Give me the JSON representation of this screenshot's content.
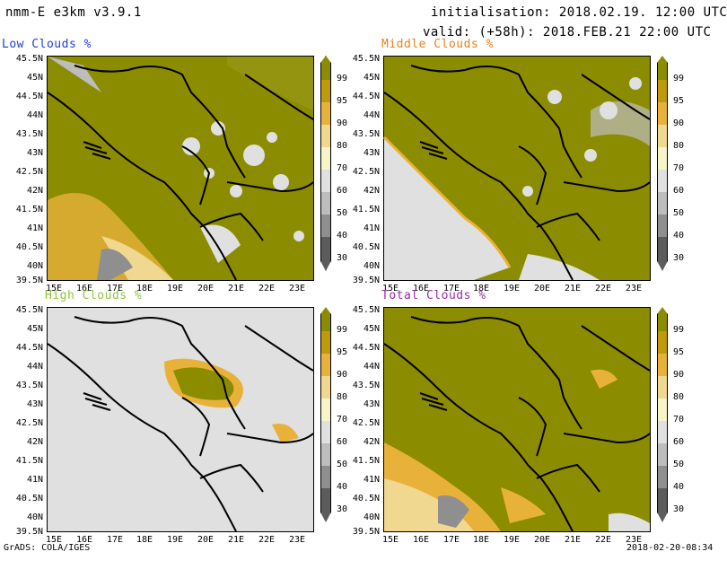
{
  "header": {
    "model": "nmm-E e3km v3.9.1",
    "init": "initialisation: 2018.02.19. 12:00 UTC",
    "valid": "valid: (+58h): 2018.FEB.21 22:00 UTC"
  },
  "panels": [
    {
      "title": "Low Clouds %",
      "title_color": "#1e3fd6"
    },
    {
      "title": "Middle Clouds %",
      "title_color": "#e8821e"
    },
    {
      "title": "High Clouds %",
      "title_color": "#8fc43a"
    },
    {
      "title": "Total Clouds %",
      "title_color": "#9b2aa8"
    }
  ],
  "y_ticks": [
    "45.5N",
    "45N",
    "44.5N",
    "44N",
    "43.5N",
    "43N",
    "42.5N",
    "42N",
    "41.5N",
    "41N",
    "40.5N",
    "40N",
    "39.5N"
  ],
  "x_ticks": [
    "15E",
    "16E",
    "17E",
    "18E",
    "19E",
    "20E",
    "21E",
    "22E",
    "23E"
  ],
  "colorbar": {
    "labels": [
      "99",
      "95",
      "90",
      "80",
      "70",
      "60",
      "50",
      "40",
      "30"
    ],
    "colors": [
      "#8c8c00",
      "#bf9a0a",
      "#e8b23a",
      "#f0d890",
      "#f7f5c8",
      "#e0e0e0",
      "#bdbdbd",
      "#8f8f8f",
      "#5c5c5c"
    ]
  },
  "footer": {
    "left": "GrADS: COLA/IGES",
    "right": "2018-02-20-08:34"
  }
}
